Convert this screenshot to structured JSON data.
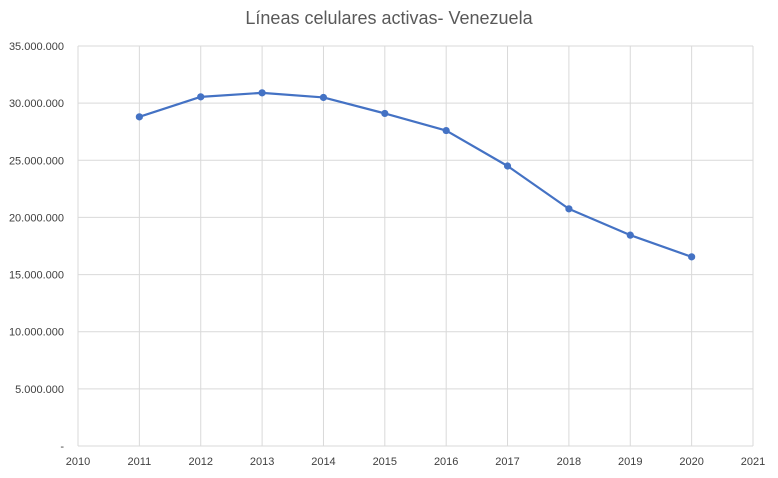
{
  "chart_data": {
    "type": "line",
    "title": "Líneas celulares activas- Venezuela",
    "xlabel": "",
    "ylabel": "",
    "x": [
      2011,
      2012,
      2013,
      2014,
      2015,
      2016,
      2017,
      2018,
      2019,
      2020
    ],
    "series": [
      {
        "values": [
          28800000,
          30550000,
          30900000,
          30500000,
          29100000,
          27600000,
          24500000,
          20750000,
          18450000,
          16550000
        ]
      }
    ],
    "xlim": [
      2010,
      2021
    ],
    "ylim": [
      0,
      35000000
    ],
    "x_ticks": [
      "2010",
      "2011",
      "2012",
      "2013",
      "2014",
      "2015",
      "2016",
      "2017",
      "2018",
      "2019",
      "2020",
      "2021"
    ],
    "y_ticks": [
      "-",
      "5.000.000",
      "10.000.000",
      "15.000.000",
      "20.000.000",
      "25.000.000",
      "30.000.000",
      "35.000.000"
    ],
    "y_tick_values": [
      0,
      5000000,
      10000000,
      15000000,
      20000000,
      25000000,
      30000000,
      35000000
    ],
    "gridlines": "both",
    "legend": "none",
    "colors": {
      "series": "#4472c4",
      "grid": "#d9d9d9",
      "text": "#595959"
    }
  }
}
